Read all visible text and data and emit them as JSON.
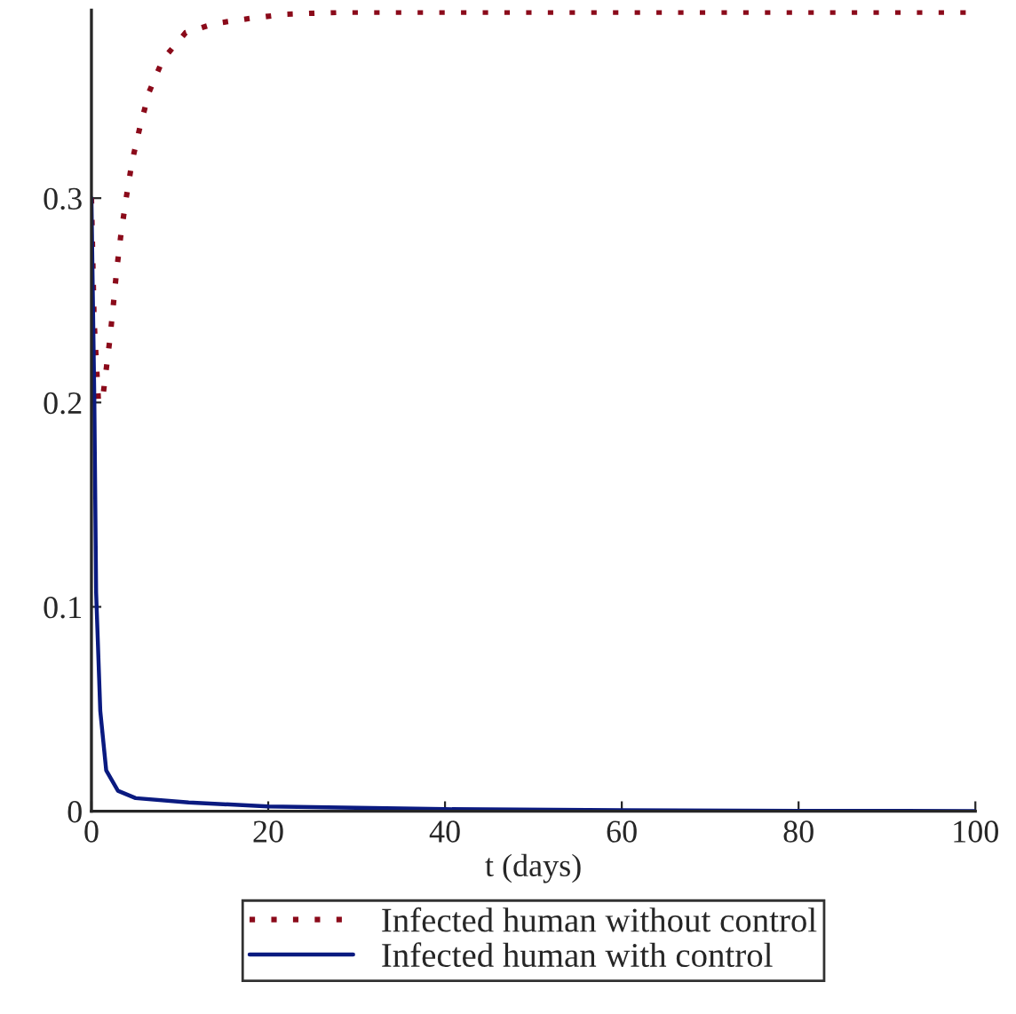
{
  "chart_data": {
    "type": "line",
    "xlabel": "t (days)",
    "xlim": [
      0,
      100
    ],
    "xticks": [
      0,
      20,
      40,
      60,
      80,
      100
    ],
    "ylim": [
      0,
      0.392
    ],
    "yticks": [
      0,
      0.1,
      0.2,
      0.3
    ],
    "grid": false,
    "legend": "bottom",
    "marker": "none",
    "series": [
      {
        "name": "Infected human without control",
        "color": "#8b0a1a",
        "line_style": "dotted",
        "x": [
          0,
          0.3,
          0.8,
          1.3,
          2.06,
          2.46,
          2.86,
          3.33,
          3.93,
          4.6,
          5.5,
          6.53,
          8.1,
          10.66,
          14,
          18,
          22,
          28.3,
          40,
          60,
          80,
          100
        ],
        "values": [
          0.3,
          0.24,
          0.2,
          0.203,
          0.23,
          0.247,
          0.265,
          0.282,
          0.3,
          0.318,
          0.335,
          0.352,
          0.368,
          0.381,
          0.3855,
          0.388,
          0.39,
          0.391,
          0.391,
          0.391,
          0.391,
          0.391
        ]
      },
      {
        "name": "Infected human with control",
        "color": "#0a1a80",
        "line_style": "solid",
        "x": [
          0,
          0.33,
          0.53,
          1,
          1.67,
          3,
          5,
          11,
          20,
          40,
          60,
          80,
          100
        ],
        "values": [
          0.3,
          0.2,
          0.107,
          0.049,
          0.02,
          0.01,
          0.0064,
          0.0043,
          0.0023,
          0.001,
          0.0005,
          0.0002,
          0.0001
        ]
      }
    ]
  }
}
